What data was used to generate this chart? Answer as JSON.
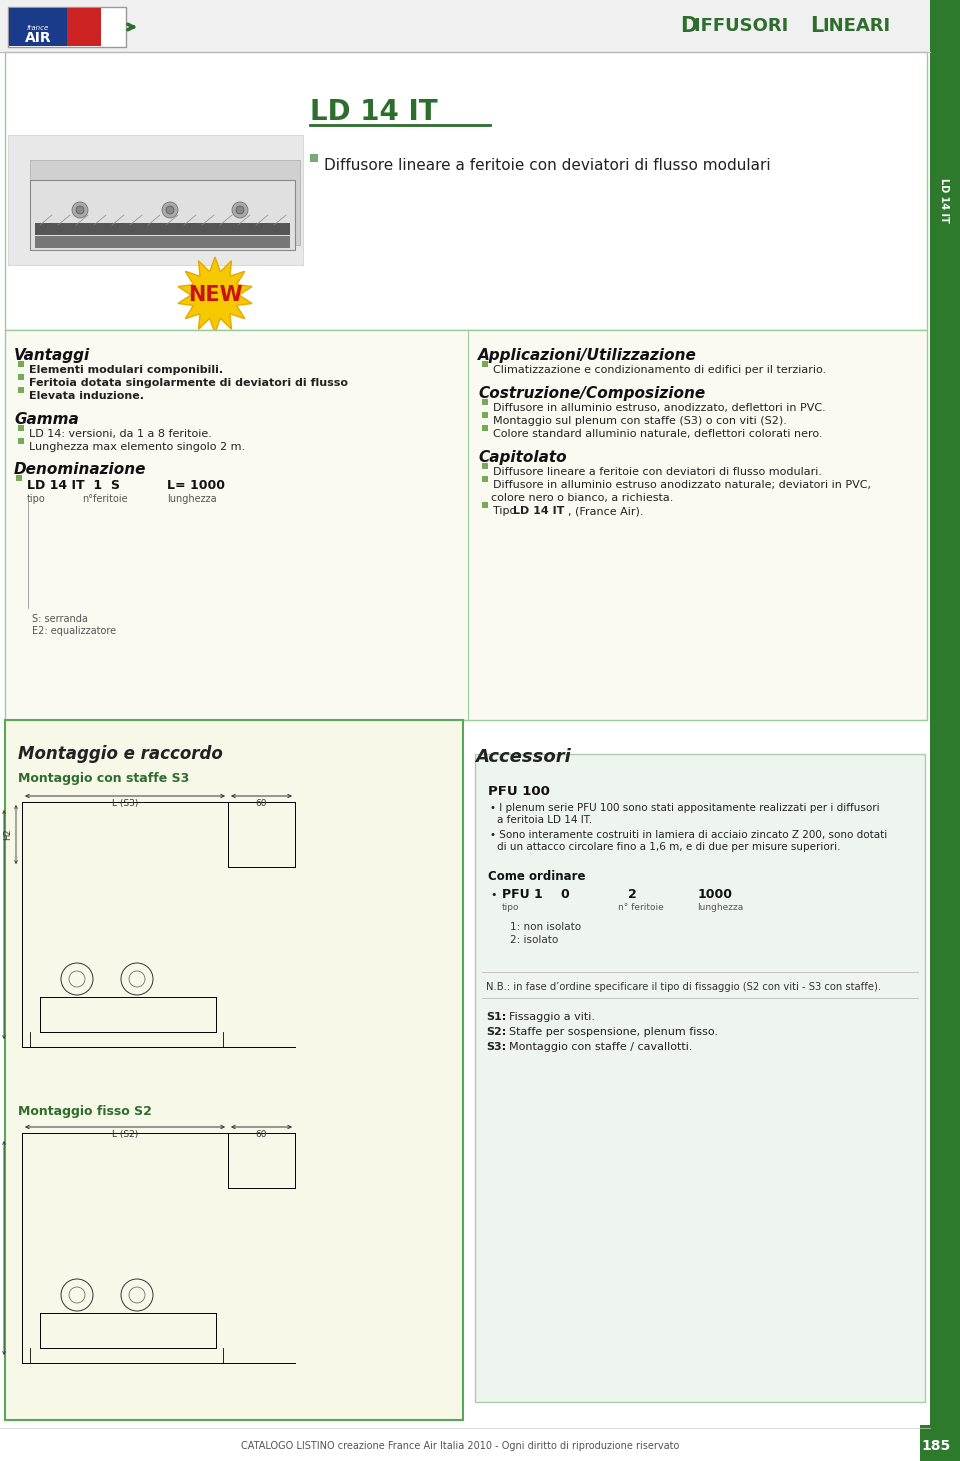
{
  "page_bg": "#ffffff",
  "green_tab_color": "#2d7a2d",
  "green_tab_text": "LD 14 IT",
  "header_title": "Diffusori lineari",
  "header_title_color": "#2d6e2d",
  "product_title": "LD 14 IT",
  "product_title_color": "#2d6e2d",
  "product_subtitle": "Diffusore lineare a feritoie con deviatori di flusso modulari",
  "bullet_color": "#6aaa5a",
  "vantaggi_title": "Vantaggi",
  "vantaggi_items": [
    "Elementi modulari componibili.",
    "Feritoia dotata singolarmente di deviatori di flusso",
    "Elevata induzione."
  ],
  "gamma_title": "Gamma",
  "gamma_items": [
    "LD 14: versioni, da 1 a 8 feritoie.",
    "Lunghezza max elemento singolo 2 m."
  ],
  "denom_title": "Denominazione",
  "denom_note1": "S: serranda",
  "denom_note2": "E2: equalizzatore",
  "appl_title": "Applicazioni/Utilizzazione",
  "appl_items": [
    "Climatizzazione e condizionamento di edifici per il terziario."
  ],
  "costr_title": "Costruzione/Composizione",
  "costr_items": [
    "Diffusore in alluminio estruso, anodizzato, deflettori in PVC.",
    "Montaggio sul plenum con staffe (S3) o con viti (S2).",
    "Colore standard alluminio naturale, deflettori colorati nero."
  ],
  "cap_title": "Capitolato",
  "cap_items": [
    "Diffusore lineare a feritoie con deviatori di flusso modulari.",
    "Diffusore in alluminio estruso anodizzato naturale; deviatori in PVC,",
    "colore nero o bianco, a richiesta.",
    "Tipo LD 14 IT, (France Air)."
  ],
  "cap_bold": [
    false,
    false,
    false,
    false
  ],
  "mont_title": "Montaggio e raccordo",
  "mont_s3_title": "Montaggio con staffe S3",
  "mont_s2_title": "Montaggio fisso S2",
  "acc_title": "Accessori",
  "pfu_title": "PFU 100",
  "pfu_items": [
    "I plenum serie PFU 100 sono stati appositamente realizzati per i diffusori",
    "a feritoia LD 14 IT.",
    "Sono interamente costruiti in lamiera di acciaio zincato Z 200, sono dotati",
    "di un attacco circolare fino a 1,6 m, e di due per misure superiori."
  ],
  "come_ord_title": "Come ordinare",
  "nb_text": "N.B.: in fase d’ordine specificare il tipo di fissaggio (S2 con viti - S3 con staffe).",
  "s1_text": "Fissaggio a viti.",
  "s2_text": "Staffe per sospensione, plenum fisso.",
  "s3_text": "Montaggio con staffe / cavallotti.",
  "footer_text": "CATALOGO LISTINO creazione France Air Italia 2010 - Ogni diritto di riproduzione riservato",
  "footer_page": "185"
}
